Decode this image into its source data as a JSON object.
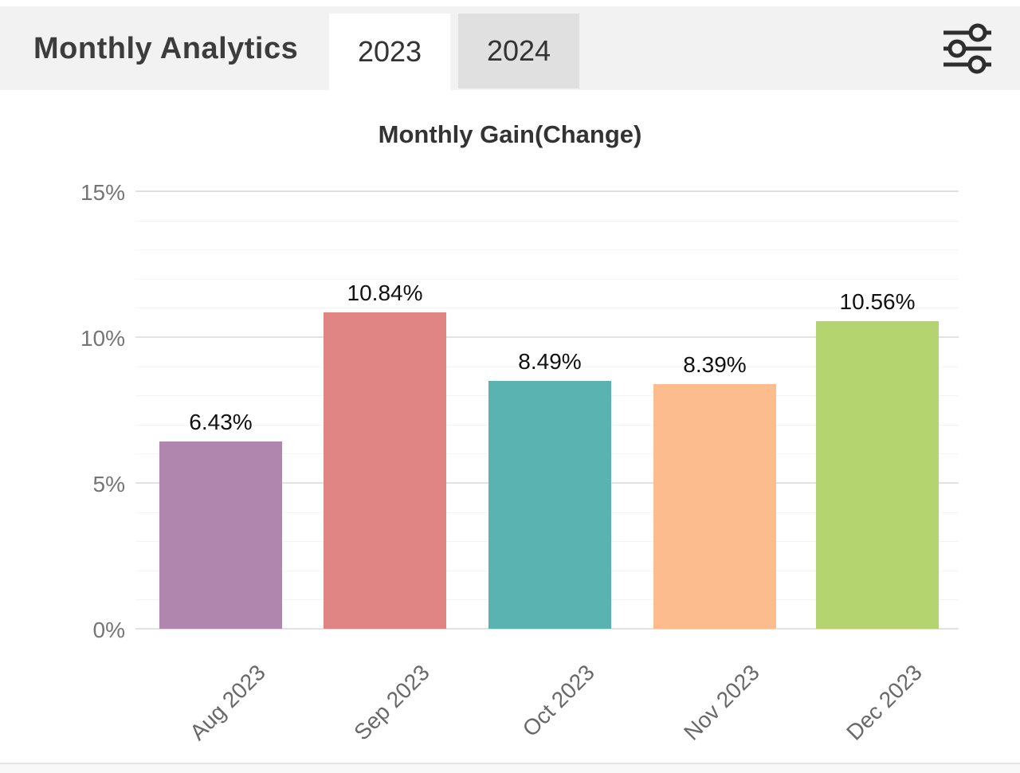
{
  "header": {
    "title": "Monthly Analytics",
    "tabs": [
      {
        "label": "2023",
        "active": true
      },
      {
        "label": "2024",
        "active": false
      }
    ],
    "filter_icon": "sliders-icon"
  },
  "chart_data": {
    "type": "bar",
    "title": "Monthly Gain(Change)",
    "categories": [
      "Aug 2023",
      "Sep 2023",
      "Oct 2023",
      "Nov 2023",
      "Dec 2023"
    ],
    "values": [
      6.43,
      10.84,
      8.49,
      8.39,
      10.56
    ],
    "value_labels": [
      "6.43%",
      "10.84%",
      "8.49%",
      "8.39%",
      "10.56%"
    ],
    "bar_colors": [
      "#b086ae",
      "#e08583",
      "#5ab3b1",
      "#fcbc8e",
      "#b4d46f"
    ],
    "y_ticks": [
      {
        "pct": 0,
        "label": "0%"
      },
      {
        "pct": 5,
        "label": "5%"
      },
      {
        "pct": 10,
        "label": "10%"
      },
      {
        "pct": 15,
        "label": "15%"
      }
    ],
    "ylim": [
      0,
      15
    ],
    "grid": "minor lines every 1%, major lines every 5%",
    "legend": "none",
    "xlabel": "",
    "ylabel": ""
  },
  "colors": {
    "header_bg": "#f2f2f2",
    "active_tab_bg": "#ffffff",
    "inactive_tab_bg": "#e0e0e0",
    "grid_major": "#e2e2e2",
    "grid_minor": "#f4f4f4",
    "icon_stroke": "#2e2e2e"
  }
}
